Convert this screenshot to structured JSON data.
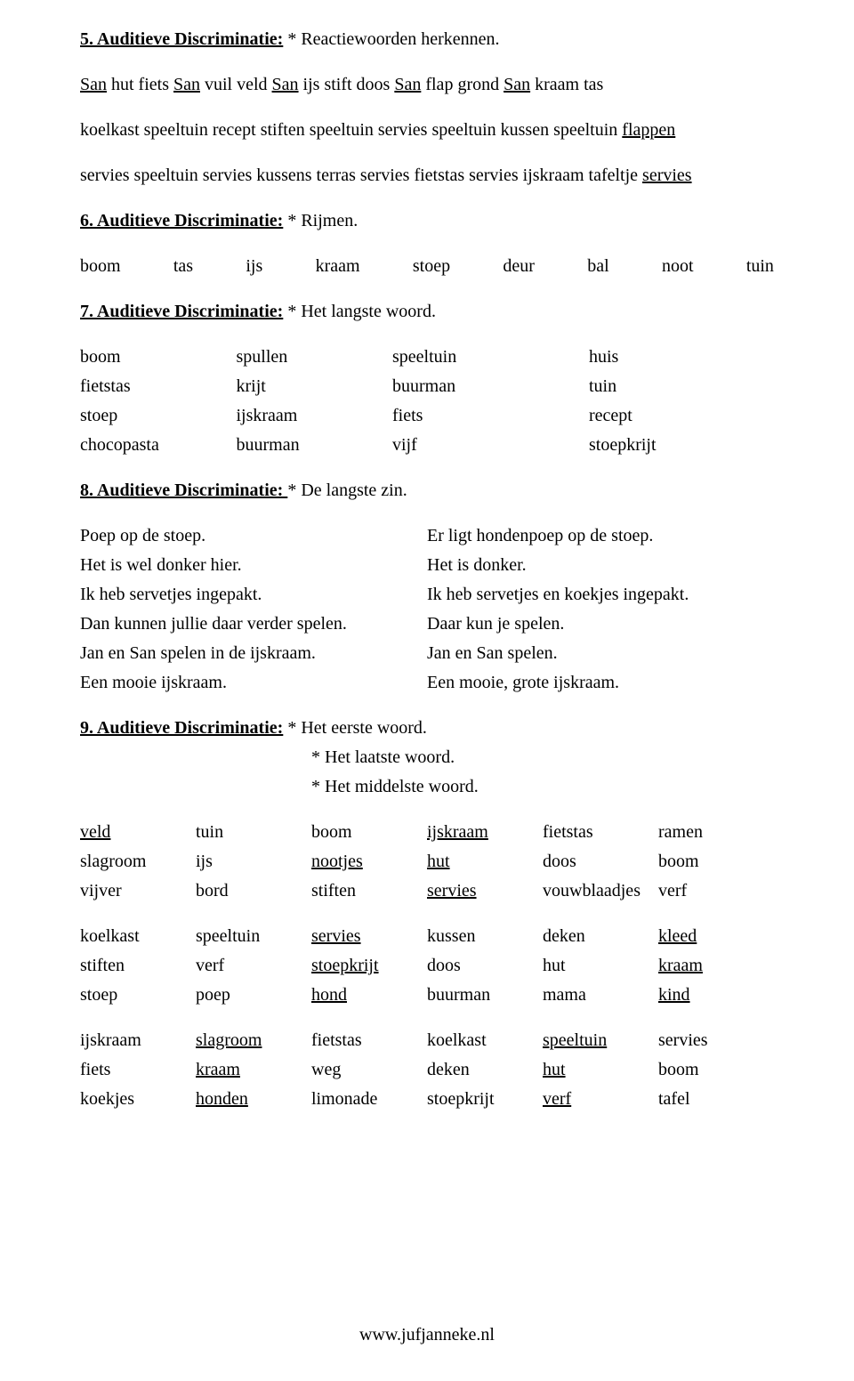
{
  "s5": {
    "title": "5. Auditieve Discriminatie:",
    "note": " * Reactiewoorden herkennen.",
    "para1": "San hut fiets San vuil veld San ijs stift doos San flap grond San kraam tas",
    "para2_pre": "koelkast speeltuin recept stiften speeltuin servies speeltuin kussen speeltuin ",
    "para2_u": "flappen",
    "para3_pre": "servies speeltuin servies kussens terras servies fietstas servies ijskraam tafeltje ",
    "para3_u": "servies"
  },
  "s6": {
    "title": "6. Auditieve Discriminatie:",
    "note": " * Rijmen.",
    "words": [
      "boom",
      "tas",
      "ijs",
      "kraam",
      "stoep",
      "deur",
      "bal",
      "noot",
      "tuin"
    ]
  },
  "s7": {
    "title": "7. Auditieve Discriminatie:",
    "note": " * Het langste woord.",
    "rows": [
      [
        "boom",
        "spullen",
        "speeltuin",
        "huis"
      ],
      [
        "fietstas",
        "krijt",
        "buurman",
        "tuin"
      ],
      [
        "stoep",
        "ijskraam",
        "fiets",
        "recept"
      ],
      [
        "chocopasta",
        "buurman",
        "vijf",
        "stoepkrijt"
      ]
    ]
  },
  "s8": {
    "title": "8. Auditieve Discriminatie: ",
    "note": " * De langste zin.",
    "pairs": [
      [
        "Poep op de stoep.",
        "Er ligt hondenpoep op de stoep."
      ],
      [
        "Het is wel donker hier.",
        "Het is donker."
      ],
      [
        "Ik heb servetjes ingepakt.",
        "Ik heb servetjes en koekjes ingepakt."
      ],
      [
        "Dan kunnen jullie daar verder spelen.",
        "Daar kun je spelen."
      ],
      [
        "Jan en San spelen in de ijskraam.",
        "Jan en San spelen."
      ],
      [
        "Een mooie ijskraam.",
        "Een mooie, grote ijskraam."
      ]
    ]
  },
  "s9": {
    "title": "9. Auditieve Discriminatie:",
    "notes": [
      "* Het eerste woord.",
      "* Het laatste woord.",
      "* Het middelste woord."
    ],
    "block1": [
      [
        [
          "veld",
          true
        ],
        [
          "tuin",
          false
        ],
        [
          "boom",
          false
        ],
        [
          "ijskraam",
          true
        ],
        [
          "fietstas",
          false
        ],
        [
          "ramen",
          false
        ]
      ],
      [
        [
          "slagroom",
          false
        ],
        [
          "ijs",
          false
        ],
        [
          "nootjes",
          true
        ],
        [
          "hut",
          true
        ],
        [
          "doos",
          false
        ],
        [
          "boom",
          false
        ]
      ],
      [
        [
          "vijver",
          false
        ],
        [
          "bord",
          false
        ],
        [
          "stiften",
          false
        ],
        [
          "servies",
          true
        ],
        [
          "vouwblaadjes",
          false
        ],
        [
          "verf",
          false
        ]
      ]
    ],
    "block2": [
      [
        [
          "koelkast",
          false
        ],
        [
          "speeltuin",
          false
        ],
        [
          "servies",
          true
        ],
        [
          "kussen",
          false
        ],
        [
          "deken",
          false
        ],
        [
          "kleed",
          true
        ]
      ],
      [
        [
          "stiften",
          false
        ],
        [
          "verf",
          false
        ],
        [
          "stoepkrijt",
          true
        ],
        [
          "doos",
          false
        ],
        [
          "hut",
          false
        ],
        [
          "kraam",
          true
        ]
      ],
      [
        [
          "stoep",
          false
        ],
        [
          "poep",
          false
        ],
        [
          "hond",
          true
        ],
        [
          "buurman",
          false
        ],
        [
          "mama",
          false
        ],
        [
          "kind",
          true
        ]
      ]
    ],
    "block3": [
      [
        [
          "ijskraam",
          false
        ],
        [
          "slagroom",
          true
        ],
        [
          "fietstas",
          false
        ],
        [
          "koelkast",
          false
        ],
        [
          "speeltuin",
          true
        ],
        [
          "servies",
          false
        ]
      ],
      [
        [
          "fiets",
          false
        ],
        [
          "kraam",
          true
        ],
        [
          "weg",
          false
        ],
        [
          "deken",
          false
        ],
        [
          "hut",
          true
        ],
        [
          "boom",
          false
        ]
      ],
      [
        [
          "koekjes",
          false
        ],
        [
          "honden",
          true
        ],
        [
          "limonade",
          false
        ],
        [
          "stoepkrijt",
          false
        ],
        [
          "verf",
          true
        ],
        [
          "tafel",
          false
        ]
      ]
    ]
  },
  "footer": "www.jufjanneke.nl"
}
